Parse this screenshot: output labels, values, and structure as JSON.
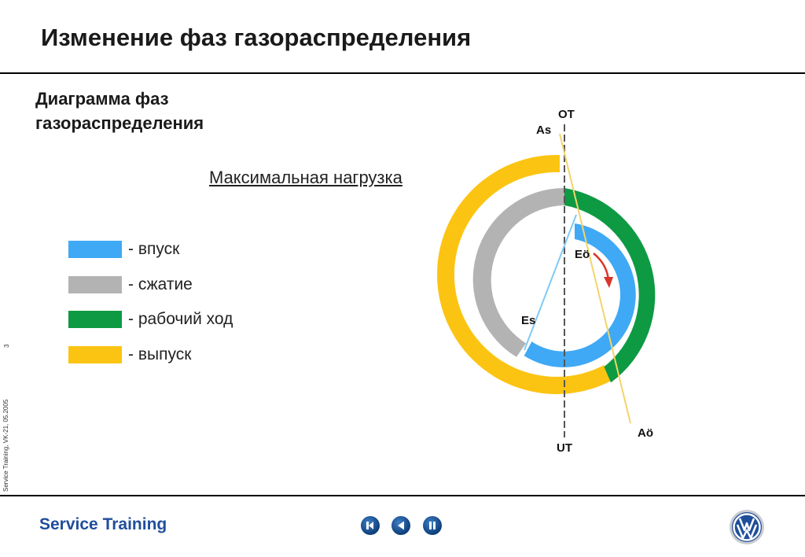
{
  "header": {
    "title": "Изменение фаз газораспределения"
  },
  "subtitle": "Диаграмма фаз газораспределения",
  "mode_label": "Максимальная нагрузка",
  "legend": [
    {
      "label": "- впуск",
      "color": "#3fa9f5"
    },
    {
      "label": "- сжатие",
      "color": "#b3b3b3"
    },
    {
      "label": "- рабочий ход",
      "color": "#0d9a43"
    },
    {
      "label": "- выпуск",
      "color": "#fcc412"
    }
  ],
  "diagram_labels": {
    "top_dead_center": "OT",
    "bottom_dead_center": "UT",
    "exhaust_closes": "As",
    "exhaust_opens": "Aö",
    "intake_opens": "Eö",
    "intake_closes": "Es"
  },
  "sidebar": {
    "page_number": "3",
    "course_ref": "Service Training, VK-21, 05.2005"
  },
  "footer": {
    "brand": "Service Training",
    "nav_icons": [
      "rewind-icon",
      "back-icon",
      "pause-icon"
    ]
  }
}
